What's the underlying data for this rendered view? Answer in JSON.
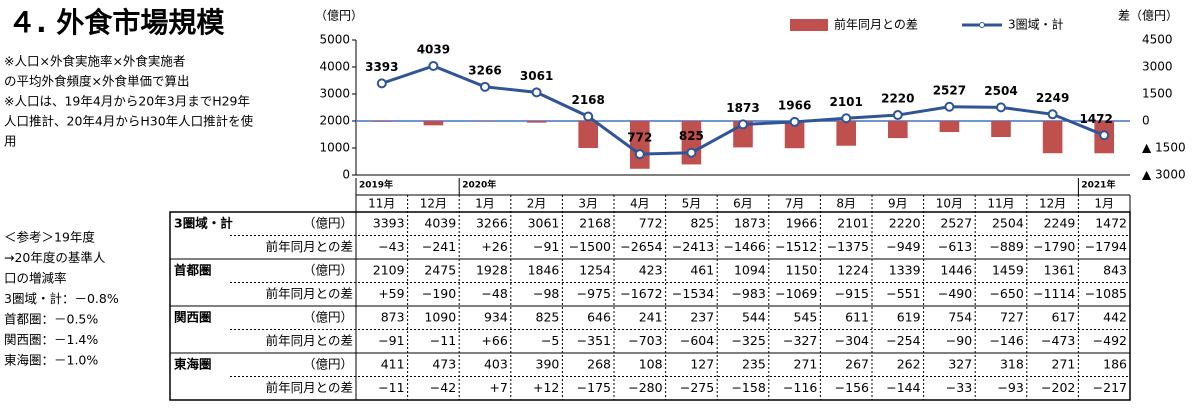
{
  "title": "４. 外食市場規模",
  "notes": [
    "※人口×外食実施率×外食実施者",
    "の平均外食頻度×外食単価で算出",
    "※人口は、19年4月から20年3月までH29年",
    "人口推計、20年4月からH30年人口推計を使",
    "用"
  ],
  "reference": [
    "＜参考＞19年度",
    "→20年度の基準人",
    "口の増減率",
    "3圏域・計：－0.8%",
    "首都圏：－0.5%",
    "関西圏：－1.4%",
    "東海圏：－1.0%"
  ],
  "chart_data": {
    "type": "bar_line",
    "ylabel": "（億円）",
    "y2label": "差（億円）",
    "categories": [
      "11月",
      "12月",
      "1月",
      "2月",
      "3月",
      "4月",
      "5月",
      "6月",
      "7月",
      "8月",
      "9月",
      "10月",
      "11月",
      "12月",
      "1月"
    ],
    "year_labels": [
      "2019年",
      null,
      "2020年",
      null,
      null,
      null,
      null,
      null,
      null,
      null,
      null,
      null,
      null,
      null,
      "2021年"
    ],
    "series": [
      {
        "name": "前年同月との差",
        "type": "bar",
        "axis": "y2",
        "color": "#c0504d",
        "values": [
          -43,
          -241,
          26,
          -91,
          -1500,
          -2654,
          -2413,
          -1466,
          -1512,
          -1375,
          -949,
          -613,
          -889,
          -1790,
          -1794
        ]
      },
      {
        "name": "3圏域・計",
        "type": "line",
        "color": "#2f5597",
        "values": [
          3393,
          4039,
          3266,
          3061,
          2168,
          772,
          825,
          1873,
          1966,
          2101,
          2220,
          2527,
          2504,
          2249,
          1472
        ]
      }
    ],
    "ylim": [
      0,
      5000
    ],
    "yticks": [
      0,
      1000,
      2000,
      3000,
      4000,
      5000
    ],
    "y2lim": [
      -3000,
      4500
    ],
    "y2ticks": [
      {
        "value": -3000,
        "label": "▲ 3000"
      },
      {
        "value": -1500,
        "label": "▲ 1500"
      },
      0,
      1500,
      3000,
      4500
    ],
    "legend": "top-right"
  },
  "table": {
    "rows": [
      {
        "label": "3圏域・計",
        "unit": "（億円）",
        "values": [
          "3393",
          "4039",
          "3266",
          "3061",
          "2168",
          "772",
          "825",
          "1873",
          "1966",
          "2101",
          "2220",
          "2527",
          "2504",
          "2249",
          "1472"
        ]
      },
      {
        "label": "前年同月との差",
        "values": [
          "−43",
          "−241",
          "+26",
          "−91",
          "−1500",
          "−2654",
          "−2413",
          "−1466",
          "−1512",
          "−1375",
          "−949",
          "−613",
          "−889",
          "−1790",
          "−1794"
        ]
      },
      {
        "label": "首都圏",
        "unit": "（億円）",
        "values": [
          "2109",
          "2475",
          "1928",
          "1846",
          "1254",
          "423",
          "461",
          "1094",
          "1150",
          "1224",
          "1339",
          "1446",
          "1459",
          "1361",
          "843"
        ]
      },
      {
        "label": "前年同月との差",
        "values": [
          "+59",
          "−190",
          "−48",
          "−98",
          "−975",
          "−1672",
          "−1534",
          "−983",
          "−1069",
          "−915",
          "−551",
          "−490",
          "−650",
          "−1114",
          "−1085"
        ]
      },
      {
        "label": "関西圏",
        "unit": "（億円）",
        "values": [
          "873",
          "1090",
          "934",
          "825",
          "646",
          "241",
          "237",
          "544",
          "545",
          "611",
          "619",
          "754",
          "727",
          "617",
          "442"
        ]
      },
      {
        "label": "前年同月との差",
        "values": [
          "−91",
          "−11",
          "+66",
          "−5",
          "−351",
          "−703",
          "−604",
          "−325",
          "−327",
          "−304",
          "−254",
          "−90",
          "−146",
          "−473",
          "−492"
        ]
      },
      {
        "label": "東海圏",
        "unit": "（億円）",
        "values": [
          "411",
          "473",
          "403",
          "390",
          "268",
          "108",
          "127",
          "235",
          "271",
          "267",
          "262",
          "327",
          "318",
          "271",
          "186"
        ]
      },
      {
        "label": "前年同月との差",
        "values": [
          "−11",
          "−42",
          "+7",
          "+12",
          "−175",
          "−280",
          "−275",
          "−158",
          "−116",
          "−156",
          "−144",
          "−33",
          "−93",
          "−202",
          "−217"
        ]
      }
    ]
  }
}
